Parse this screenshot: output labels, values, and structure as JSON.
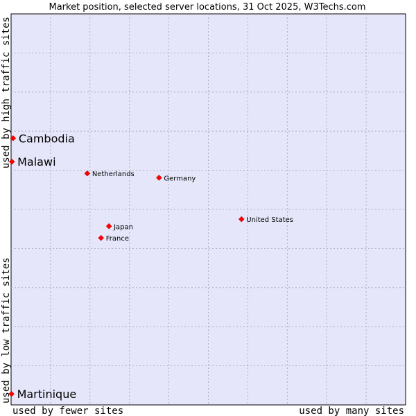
{
  "chart_data": {
    "type": "scatter",
    "title": "Market position, selected server locations, 31 Oct 2025, W3Techs.com",
    "xlabel_low": "used by fewer sites",
    "xlabel_high": "used by many sites",
    "ylabel_low": "used by low traffic sites",
    "ylabel_high": "used by high traffic sites",
    "xlim": [
      0,
      100
    ],
    "ylim": [
      0,
      100
    ],
    "grid": true,
    "colors": {
      "plot_bg": "#e6e6fa",
      "grid": "#a0a0b8",
      "marker": "#ff0000",
      "border": "#000000"
    },
    "points": [
      {
        "name": "Cambodia",
        "x": 0.5,
        "y": 68.2,
        "size": "large"
      },
      {
        "name": "Malawi",
        "x": 0.2,
        "y": 62.2,
        "size": "large"
      },
      {
        "name": "Netherlands",
        "x": 19.3,
        "y": 59.2,
        "size": "small"
      },
      {
        "name": "Germany",
        "x": 37.5,
        "y": 58.1,
        "size": "small"
      },
      {
        "name": "United States",
        "x": 58.4,
        "y": 47.5,
        "size": "small"
      },
      {
        "name": "Japan",
        "x": 24.8,
        "y": 45.7,
        "size": "small"
      },
      {
        "name": "France",
        "x": 22.8,
        "y": 42.7,
        "size": "small"
      },
      {
        "name": "Martinique",
        "x": 0.1,
        "y": 2.8,
        "size": "large"
      }
    ]
  }
}
